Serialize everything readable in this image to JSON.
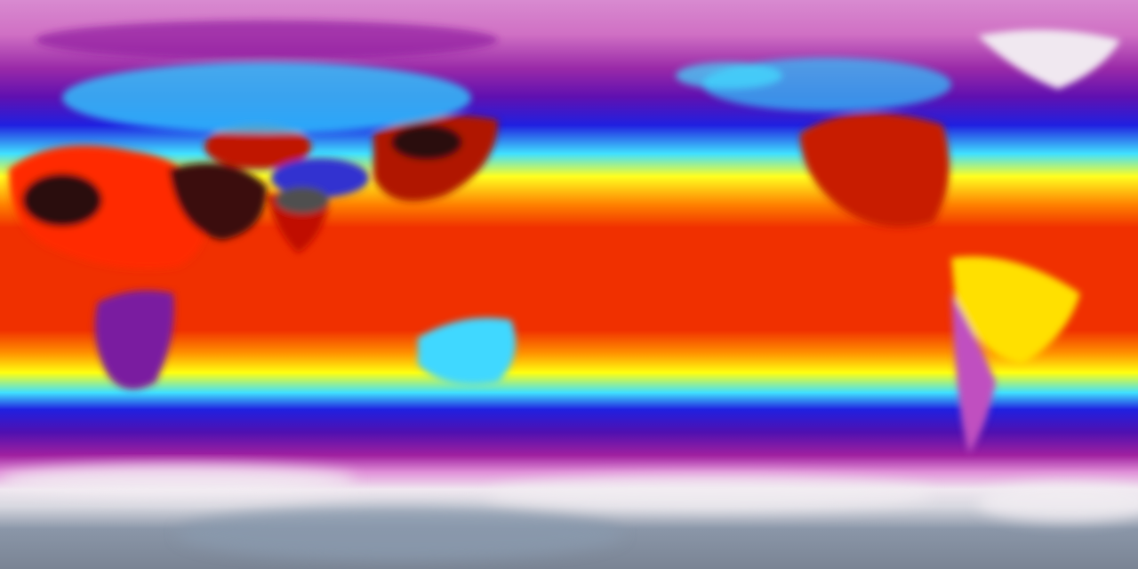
{
  "map": {
    "projection": "equirectangular",
    "colormap": {
      "polar_north": "#d47cc8",
      "cold": "#8a1aa8",
      "cool": "#1e1ee6",
      "mild": "#3fe6ff",
      "warm": "#ffff00",
      "hot": "#f03000",
      "hottest": "#2a0a0a",
      "ice_south": "#f0e8f0",
      "antarctica": "#8290a4"
    }
  }
}
